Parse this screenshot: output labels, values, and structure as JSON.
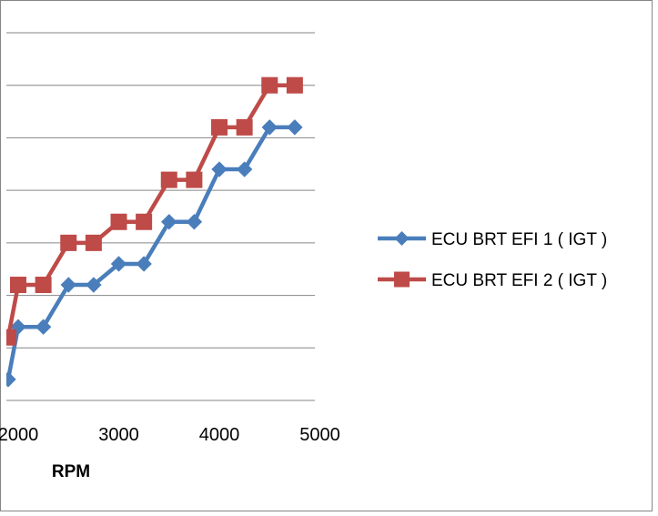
{
  "chart_data": {
    "type": "line",
    "title": "",
    "xlabel": "RPM",
    "ylabel": "",
    "x_ticks": [
      2000,
      3000,
      4000,
      5000
    ],
    "x_tick_labels": [
      "2000",
      "3000",
      "4000",
      "5000"
    ],
    "xlim": [
      1900,
      5000
    ],
    "ylim": [
      0,
      7
    ],
    "grid": "horizontal",
    "legend_position": "right",
    "x": [
      1900,
      2000,
      2250,
      2500,
      2750,
      3000,
      3250,
      3500,
      3750,
      4000,
      4250,
      4500,
      4750
    ],
    "series": [
      {
        "name": "ECU BRT EFI 1 ( IGT )",
        "color": "#4a7ebb",
        "marker": "diamond",
        "values": [
          0.4,
          1.4,
          1.4,
          2.2,
          2.2,
          2.6,
          2.6,
          3.4,
          3.4,
          4.4,
          4.4,
          5.2,
          5.2
        ]
      },
      {
        "name": "ECU BRT EFI 2 ( IGT )",
        "color": "#be4b48",
        "marker": "square",
        "values": [
          1.2,
          2.2,
          2.2,
          3.0,
          3.0,
          3.4,
          3.4,
          4.2,
          4.2,
          5.2,
          5.2,
          6.0,
          6.0
        ]
      }
    ]
  }
}
